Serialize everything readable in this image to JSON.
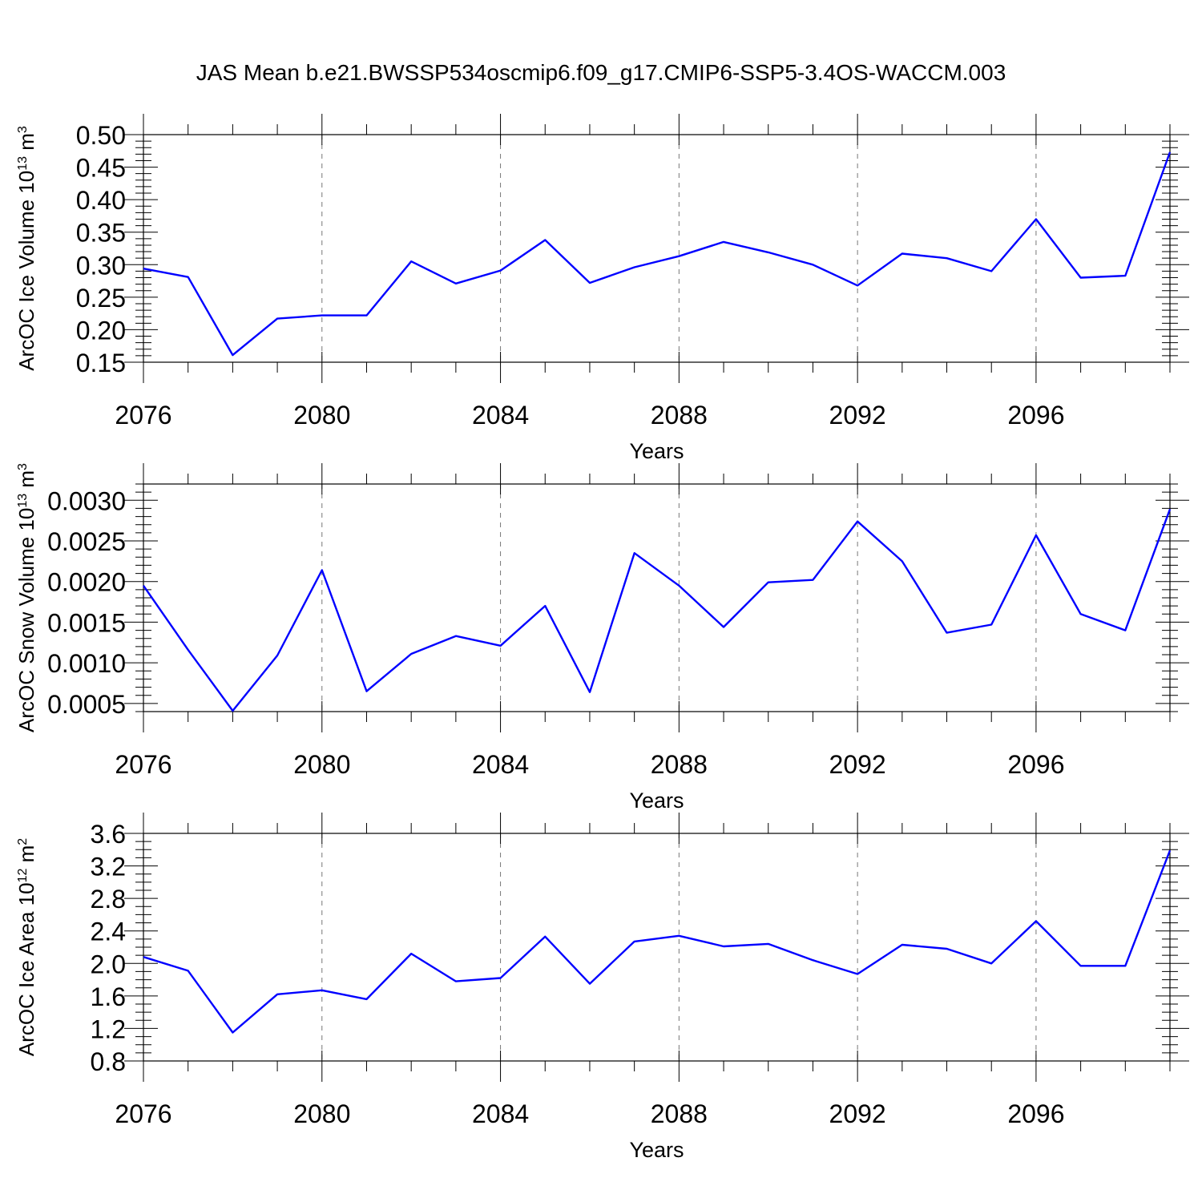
{
  "title": "JAS Mean b.e21.BWSSP534oscmip6.f09_g17.CMIP6-SSP5-3.4OS-WACCM.003",
  "colors": {
    "line": "#0000ff",
    "grid": "#777777",
    "axis": "#000000"
  },
  "chart_data": [
    {
      "type": "line",
      "ylabel": {
        "main": "ArcOC Ice Volume 10",
        "exp": "13",
        "unit": " m",
        "unit_exp": "3"
      },
      "xlabel": "Years",
      "xlim": [
        2076,
        2099
      ],
      "xticks": [
        2076,
        2080,
        2084,
        2088,
        2092,
        2096
      ],
      "xtick_labels": [
        "2076",
        "2080",
        "2084",
        "2088",
        "2092",
        "2096"
      ],
      "ylim": [
        0.15,
        0.5
      ],
      "yticks": [
        0.15,
        0.2,
        0.25,
        0.3,
        0.35,
        0.4,
        0.45,
        0.5
      ],
      "ytick_labels": [
        "0.15",
        "0.20",
        "0.25",
        "0.30",
        "0.35",
        "0.40",
        "0.45",
        "0.50"
      ],
      "y_minor_step": 0.01,
      "grid": "vertical dashed at major x ticks",
      "x": [
        2076,
        2077,
        2078,
        2079,
        2080,
        2081,
        2082,
        2083,
        2084,
        2085,
        2086,
        2087,
        2088,
        2089,
        2090,
        2091,
        2092,
        2093,
        2094,
        2095,
        2096,
        2097,
        2098,
        2099
      ],
      "y": [
        0.294,
        0.281,
        0.161,
        0.217,
        0.222,
        0.222,
        0.305,
        0.271,
        0.291,
        0.338,
        0.272,
        0.296,
        0.313,
        0.335,
        0.319,
        0.3,
        0.268,
        0.317,
        0.31,
        0.29,
        0.37,
        0.28,
        0.283,
        0.473
      ]
    },
    {
      "type": "line",
      "ylabel": {
        "main": "ArcOC Snow Volume 10",
        "exp": "13",
        "unit": " m",
        "unit_exp": "3"
      },
      "xlabel": "Years",
      "xlim": [
        2076,
        2099
      ],
      "xticks": [
        2076,
        2080,
        2084,
        2088,
        2092,
        2096
      ],
      "xtick_labels": [
        "2076",
        "2080",
        "2084",
        "2088",
        "2092",
        "2096"
      ],
      "ylim": [
        0.0004,
        0.0032
      ],
      "yticks": [
        0.0005,
        0.001,
        0.0015,
        0.002,
        0.0025,
        0.003
      ],
      "ytick_labels": [
        "0.0005",
        "0.0010",
        "0.0015",
        "0.0020",
        "0.0025",
        "0.0030"
      ],
      "y_minor_step": 0.0001,
      "grid": "vertical dashed at major x ticks",
      "x": [
        2076,
        2077,
        2078,
        2079,
        2080,
        2081,
        2082,
        2083,
        2084,
        2085,
        2086,
        2087,
        2088,
        2089,
        2090,
        2091,
        2092,
        2093,
        2094,
        2095,
        2096,
        2097,
        2098,
        2099
      ],
      "y": [
        0.00195,
        0.00116,
        0.00041,
        0.00109,
        0.00214,
        0.00065,
        0.00111,
        0.00133,
        0.00121,
        0.0017,
        0.00064,
        0.00235,
        0.00195,
        0.00144,
        0.00199,
        0.00202,
        0.00274,
        0.00225,
        0.00137,
        0.00147,
        0.00257,
        0.0016,
        0.0014,
        0.00289
      ]
    },
    {
      "type": "line",
      "ylabel": {
        "main": "ArcOC Ice Area 10",
        "exp": "12",
        "unit": " m",
        "unit_exp": "2"
      },
      "xlabel": "Years",
      "xlim": [
        2076,
        2099
      ],
      "xticks": [
        2076,
        2080,
        2084,
        2088,
        2092,
        2096
      ],
      "xtick_labels": [
        "2076",
        "2080",
        "2084",
        "2088",
        "2092",
        "2096"
      ],
      "ylim": [
        0.8,
        3.6
      ],
      "yticks": [
        0.8,
        1.2,
        1.6,
        2.0,
        2.4,
        2.8,
        3.2,
        3.6
      ],
      "ytick_labels": [
        "0.8",
        "1.2",
        "1.6",
        "2.0",
        "2.4",
        "2.8",
        "3.2",
        "3.6"
      ],
      "y_minor_step": 0.1,
      "grid": "vertical dashed at major x ticks",
      "x": [
        2076,
        2077,
        2078,
        2079,
        2080,
        2081,
        2082,
        2083,
        2084,
        2085,
        2086,
        2087,
        2088,
        2089,
        2090,
        2091,
        2092,
        2093,
        2094,
        2095,
        2096,
        2097,
        2098,
        2099
      ],
      "y": [
        2.08,
        1.91,
        1.15,
        1.62,
        1.67,
        1.56,
        2.12,
        1.78,
        1.82,
        2.33,
        1.75,
        2.27,
        2.34,
        2.21,
        2.24,
        2.04,
        1.87,
        2.23,
        2.18,
        2.0,
        2.52,
        1.97,
        1.97,
        3.39
      ]
    }
  ]
}
